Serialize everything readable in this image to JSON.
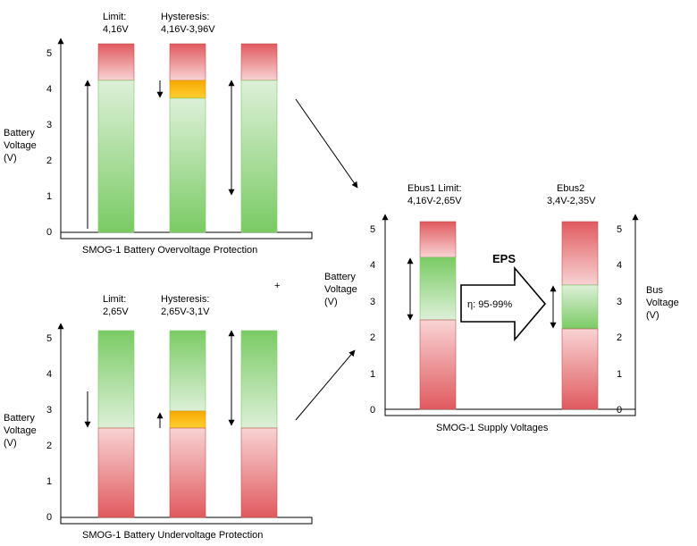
{
  "colors": {
    "red_top": "#e05a5f",
    "red_light": "#f8d3d4",
    "green_strong": "#7acb64",
    "green_light": "#ddf0d8",
    "orange": "#f6a800",
    "orange_light": "#ffcf33"
  },
  "panels": {
    "overvoltage": {
      "caption": "SMOG-1 Battery Overvoltage Protection",
      "ylabel_lines": [
        "Battery",
        "Voltage",
        "(V)"
      ],
      "ticks": [
        "0",
        "1",
        "2",
        "3",
        "4",
        "5"
      ],
      "limit_label": [
        "Limit:",
        "4,16V"
      ],
      "hysteresis_label": [
        "Hysteresis:",
        "4,16V-3,96V"
      ]
    },
    "undervoltage": {
      "caption": "SMOG-1 Battery Undervoltage Protection",
      "ylabel_lines": [
        "Battery",
        "Voltage",
        "(V)"
      ],
      "ticks": [
        "0",
        "1",
        "2",
        "3",
        "4",
        "5"
      ],
      "limit_label": [
        "Limit:",
        "2,65V"
      ],
      "hysteresis_label": [
        "Hysteresis:",
        "2,65V-3,1V"
      ]
    },
    "supply": {
      "caption": "SMOG-1 Supply Voltages",
      "ylabel_left_lines": [
        "Battery",
        "Voltage",
        "(V)"
      ],
      "ylabel_right_lines": [
        "Bus",
        "Voltage",
        "(V)"
      ],
      "ticks_left": [
        "0",
        "1",
        "2",
        "3",
        "4",
        "5"
      ],
      "ticks_right": [
        "0",
        "1",
        "2",
        "3",
        "4",
        "5"
      ],
      "ebus1_label": [
        "Ebus1 Limit:",
        "4,16V-2,65V"
      ],
      "ebus2_label": [
        "Ebus2",
        "3,4V-2,35V"
      ],
      "eps_title": "EPS",
      "eps_efficiency": "η: 95-99%"
    }
  },
  "stray_mark": "+"
}
